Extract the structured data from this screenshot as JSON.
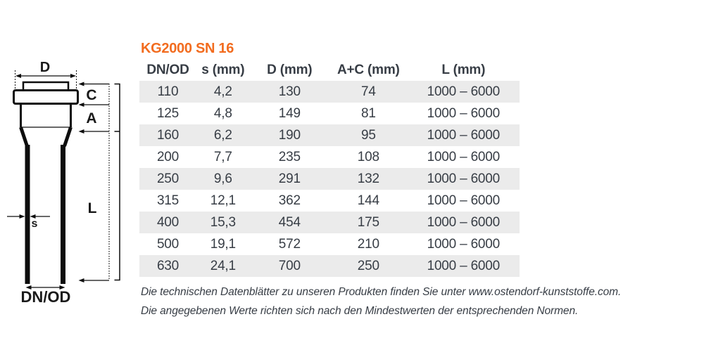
{
  "title": "KG2000 SN 16",
  "diagram": {
    "labels": {
      "d": "D",
      "c": "C",
      "a": "A",
      "l": "L",
      "s": "s",
      "dn": "DN/OD"
    }
  },
  "table": {
    "headers": [
      "DN/OD",
      "s (mm)",
      "D (mm)",
      "A+C (mm)",
      "L (mm)"
    ],
    "rows": [
      [
        "110",
        "4,2",
        "130",
        "74",
        "1000 – 6000"
      ],
      [
        "125",
        "4,8",
        "149",
        "81",
        "1000 – 6000"
      ],
      [
        "160",
        "6,2",
        "190",
        "95",
        "1000 – 6000"
      ],
      [
        "200",
        "7,7",
        "235",
        "108",
        "1000 – 6000"
      ],
      [
        "250",
        "9,6",
        "291",
        "132",
        "1000 – 6000"
      ],
      [
        "315",
        "12,1",
        "362",
        "144",
        "1000 – 6000"
      ],
      [
        "400",
        "15,3",
        "454",
        "175",
        "1000 – 6000"
      ],
      [
        "500",
        "19,1",
        "572",
        "210",
        "1000 – 6000"
      ],
      [
        "630",
        "24,1",
        "700",
        "250",
        "1000 – 6000"
      ]
    ]
  },
  "footer": {
    "line1": "Die technischen Datenblätter zu unseren Produkten finden Sie unter www.ostendorf-kunststoffe.com.",
    "line2": "Die angegebenen Werte richten sich nach den Mindestwerten der entsprechenden Normen."
  },
  "colors": {
    "accent": "#f26c1f",
    "text": "#373d45",
    "row_stripe": "#ebebeb",
    "line": "#0d0d0d"
  }
}
